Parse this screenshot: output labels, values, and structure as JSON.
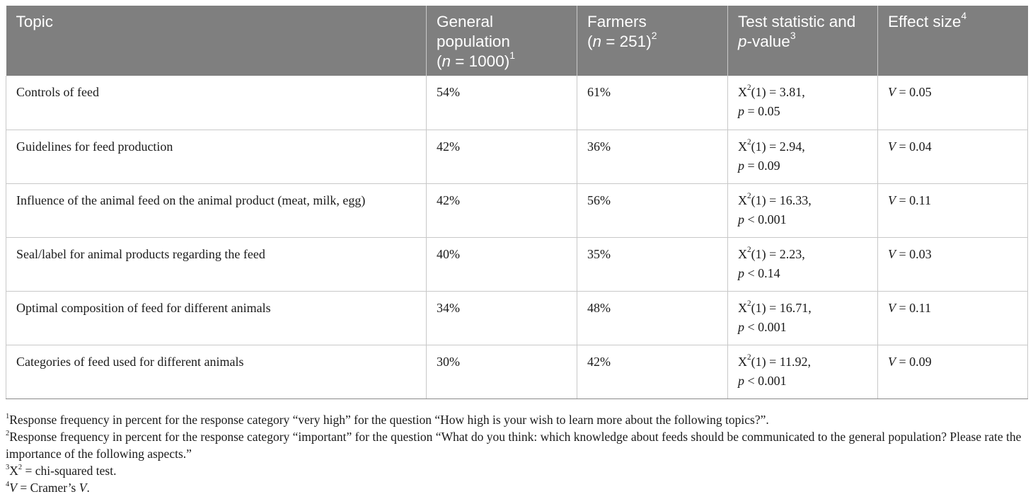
{
  "header": {
    "topic": "Topic",
    "general_label": "General population",
    "general_n_prefix": "(",
    "general_n_var": "n",
    "general_n_value": " = 1000)",
    "general_sup": "1",
    "farmers_label": "Farmers",
    "farmers_n_prefix": "(",
    "farmers_n_var": "n",
    "farmers_n_value": " = 251)",
    "farmers_sup": "2",
    "test_label": "Test statistic and ",
    "test_p_var": "p",
    "test_label_tail": "-value",
    "test_sup": "3",
    "effect_label": "Effect size",
    "effect_sup": "4"
  },
  "rows": [
    {
      "topic": "Controls of feed",
      "general": "54%",
      "farmers": "61%",
      "chi": "(1) = 3.81,",
      "p": " = 0.05",
      "v": " = 0.05"
    },
    {
      "topic": "Guidelines for feed production",
      "general": "42%",
      "farmers": "36%",
      "chi": "(1) = 2.94,",
      "p": " = 0.09",
      "v": " = 0.04"
    },
    {
      "topic": "Influence of the animal feed on the animal product (meat, milk, egg)",
      "general": "42%",
      "farmers": "56%",
      "chi": "(1) = 16.33,",
      "p": " < 0.001",
      "v": " = 0.11"
    },
    {
      "topic": "Seal/label for animal products regarding the feed",
      "general": "40%",
      "farmers": "35%",
      "chi": "(1) = 2.23,",
      "p": " < 0.14",
      "v": " = 0.03"
    },
    {
      "topic": "Optimal composition of feed for different animals",
      "general": "34%",
      "farmers": "48%",
      "chi": "(1) = 16.71,",
      "p": " < 0.001",
      "v": " = 0.11"
    },
    {
      "topic": "Categories of feed used for different animals",
      "general": "30%",
      "farmers": "42%",
      "chi": "(1) = 11.92,",
      "p": " < 0.001",
      "v": " = 0.09"
    }
  ],
  "symbols": {
    "chi_base": "X",
    "chi_exp": "2",
    "p_var": "p",
    "v_var": "V"
  },
  "footnotes": {
    "f1_mark": "1",
    "f1_text": "Response frequency in percent for the response category “very high” for the question “How high is your wish to learn more about the following topics?”.",
    "f2_mark": "2",
    "f2_text": "Response frequency in percent for the response category “important” for the question “What do you think: which knowledge about feeds should be communicated to the general population? Please rate the importance of the following aspects.”",
    "f3_mark": "3",
    "f3_base": "X",
    "f3_exp": "2",
    "f3_text": " = chi-squared test.",
    "f4_mark": "4",
    "f4_var": "V",
    "f4_text": " = Cramer’s ",
    "f4_var2": "V",
    "f4_end": "."
  }
}
